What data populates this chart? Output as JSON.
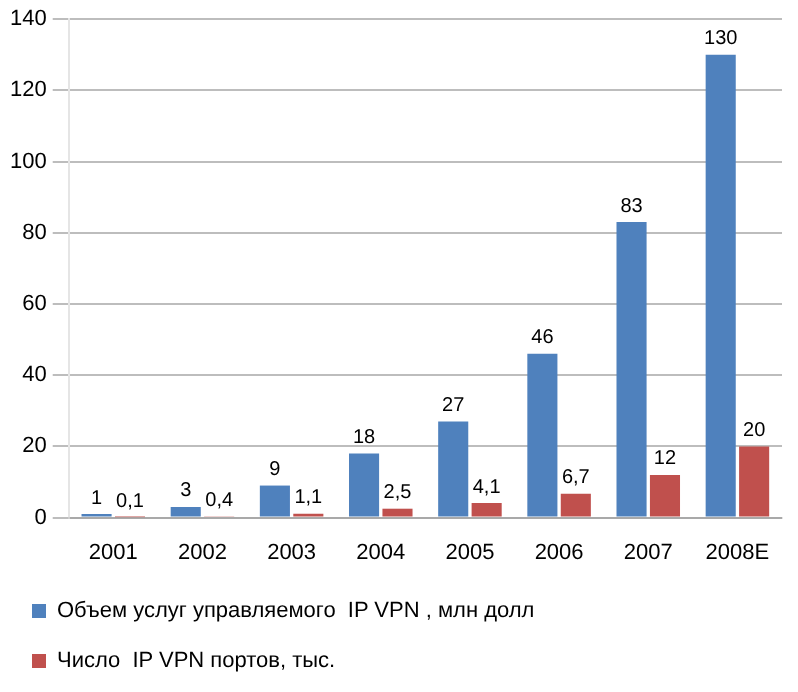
{
  "chart_data": {
    "type": "bar",
    "categories": [
      "2001",
      "2002",
      "2003",
      "2004",
      "2005",
      "2006",
      "2007",
      "2008E"
    ],
    "series": [
      {
        "name": "Объем услуг управляемого  IP VPN , млн долл",
        "color": "#4f81bd",
        "values": [
          1,
          3,
          9,
          18,
          27,
          46,
          83,
          130
        ],
        "value_labels": [
          "1",
          "3",
          "9",
          "18",
          "27",
          "46",
          "83",
          "130"
        ]
      },
      {
        "name": "Число  IP VPN портов, тыс.",
        "color": "#c0504d",
        "values": [
          0.1,
          0.4,
          1.1,
          2.5,
          4.1,
          6.7,
          12,
          20
        ],
        "value_labels": [
          "0,1",
          "0,4",
          "1,1",
          "2,5",
          "4,1",
          "6,7",
          "12",
          "20"
        ]
      }
    ],
    "ylim": [
      0,
      140
    ],
    "yticks": [
      0,
      20,
      40,
      60,
      80,
      100,
      120,
      140
    ],
    "grid": "y",
    "legend": "bottom"
  }
}
